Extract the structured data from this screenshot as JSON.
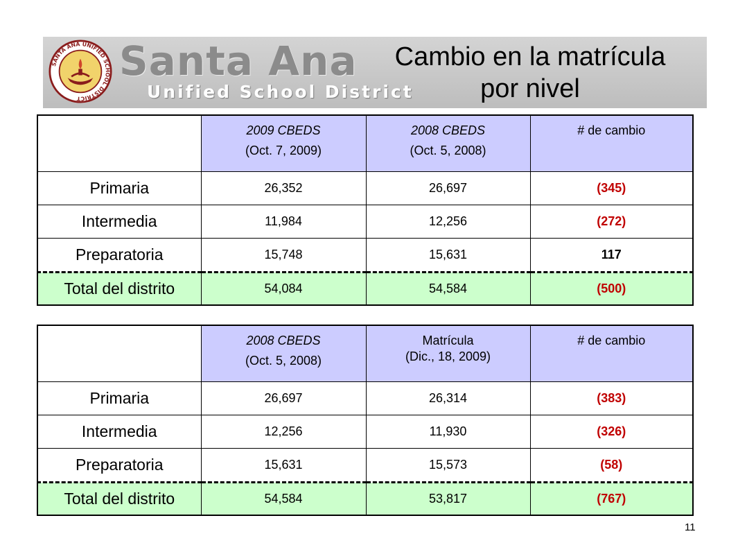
{
  "header": {
    "brand_name": "Santa Ana",
    "brand_subtitle": "Unified School District",
    "seal_text": "SANTA ANA UNIFIED SCHOOL DISTRICT",
    "title_line1": "Cambio en la matrícula",
    "title_line2": "por nivel"
  },
  "table1": {
    "columns": [
      {
        "line1": "2009 CBEDS",
        "line2": "(Oct. 7, 2009)"
      },
      {
        "line1": "2008 CBEDS",
        "line2": "(Oct. 5, 2008)"
      },
      {
        "line1": "# de cambio",
        "line2": ""
      }
    ],
    "rows": [
      {
        "label": "Primaria",
        "a": "26,352",
        "b": "26,697",
        "change": "(345)"
      },
      {
        "label": "Intermedia",
        "a": "11,984",
        "b": "12,256",
        "change": "(272)"
      },
      {
        "label": "Preparatoria",
        "a": "15,748",
        "b": "15,631",
        "change": "117"
      },
      {
        "label": "Total del distrito",
        "a": "54,084",
        "b": "54,584",
        "change": "(500)"
      }
    ]
  },
  "table2": {
    "columns": [
      {
        "line1": "2008 CBEDS",
        "line2": "(Oct. 5, 2008)"
      },
      {
        "line1": "Matrícula",
        "line2": "(Dic., 18, 2009)"
      },
      {
        "line1": "# de cambio",
        "line2": ""
      }
    ],
    "rows": [
      {
        "label": "Primaria",
        "a": "26,697",
        "b": "26,314",
        "change": "(383)"
      },
      {
        "label": "Intermedia",
        "a": "12,256",
        "b": "11,930",
        "change": "(326)"
      },
      {
        "label": "Preparatoria",
        "a": "15,631",
        "b": "15,573",
        "change": "(58)"
      },
      {
        "label": "Total del distrito",
        "a": "54,584",
        "b": "53,817",
        "change": "(767)"
      }
    ]
  },
  "colors": {
    "header_fill": "#ccccff",
    "total_fill": "#ccffcc",
    "negative_change": "#c00000",
    "banner_gray": "#c8c8c8"
  },
  "page_number": "11"
}
